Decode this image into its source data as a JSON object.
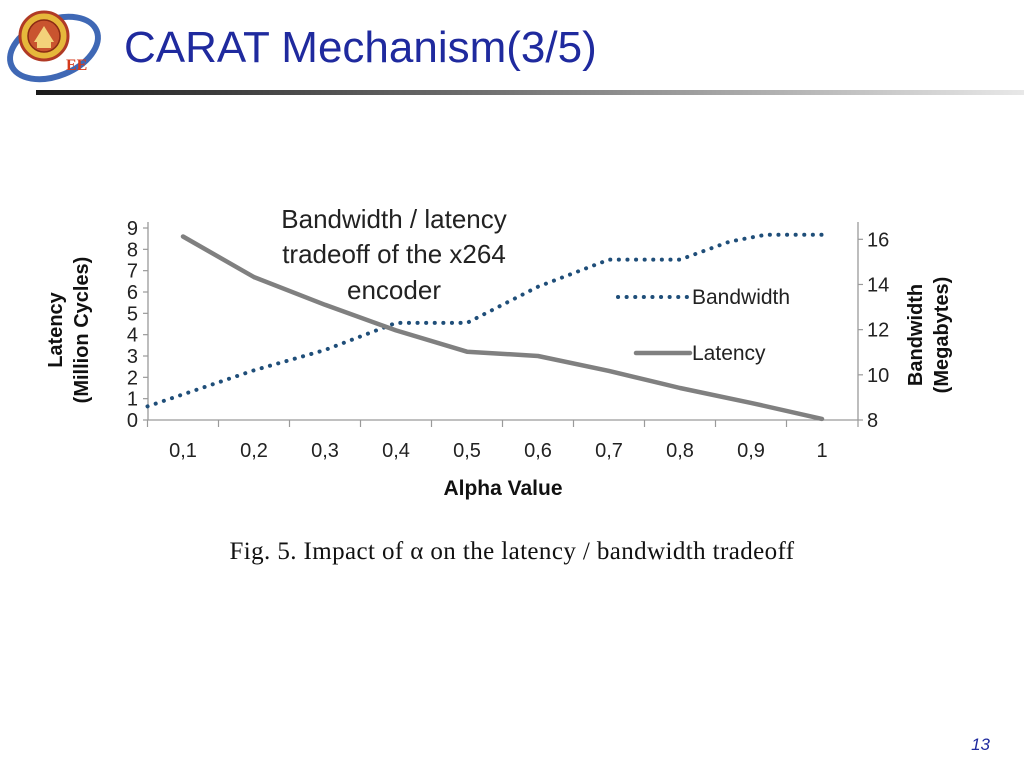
{
  "slide": {
    "title": "CARAT Mechanism(3/5)",
    "logo_text": "EE",
    "caption": "Fig. 5.    Impact of α on the latency / bandwidth tradeoff",
    "page_number": "13"
  },
  "chart_data": {
    "type": "line",
    "title": "Bandwidth / latency tradeoff of the x264 encoder",
    "title_lines": [
      "Bandwidth / latency",
      "tradeoff of the x264",
      "encoder"
    ],
    "xlabel": "Alpha Value",
    "categories": [
      "0,1",
      "0,2",
      "0,3",
      "0,4",
      "0,5",
      "0,6",
      "0,7",
      "0,8",
      "0,9",
      "1"
    ],
    "x": [
      0.1,
      0.2,
      0.3,
      0.4,
      0.5,
      0.6,
      0.7,
      0.8,
      0.9,
      1.0
    ],
    "y_left": {
      "label_lines": [
        "Latency",
        "(Million Cycles)"
      ],
      "ticks": [
        0,
        1,
        2,
        3,
        4,
        5,
        6,
        7,
        8,
        9
      ],
      "ylim": [
        0,
        9
      ]
    },
    "y_right": {
      "label_lines": [
        "Bandwidth",
        "(Megabytes)"
      ],
      "ticks": [
        8,
        10,
        12,
        14,
        16
      ],
      "ylim": [
        8,
        16.5
      ]
    },
    "series": [
      {
        "name": "Bandwidth",
        "axis": "right",
        "style": "dotted",
        "color": "#1f4e79",
        "x": [
          0.05,
          0.2,
          0.3,
          0.4,
          0.5,
          0.6,
          0.7,
          0.8,
          0.87,
          0.92,
          0.95,
          1.01
        ],
        "values": [
          8.6,
          10.2,
          11.1,
          12.3,
          12.3,
          13.9,
          15.1,
          15.1,
          15.9,
          16.2,
          16.2,
          16.2
        ]
      },
      {
        "name": "Latency",
        "axis": "left",
        "style": "solid",
        "color": "#808080",
        "x": [
          0.1,
          0.2,
          0.3,
          0.4,
          0.5,
          0.6,
          0.7,
          0.8,
          0.9,
          1.0
        ],
        "values": [
          8.6,
          6.7,
          5.4,
          4.2,
          3.2,
          3.0,
          2.3,
          1.5,
          0.8,
          0.05
        ]
      }
    ],
    "legend": [
      "Bandwidth",
      "Latency"
    ],
    "legend_position": "right",
    "grid": false
  }
}
